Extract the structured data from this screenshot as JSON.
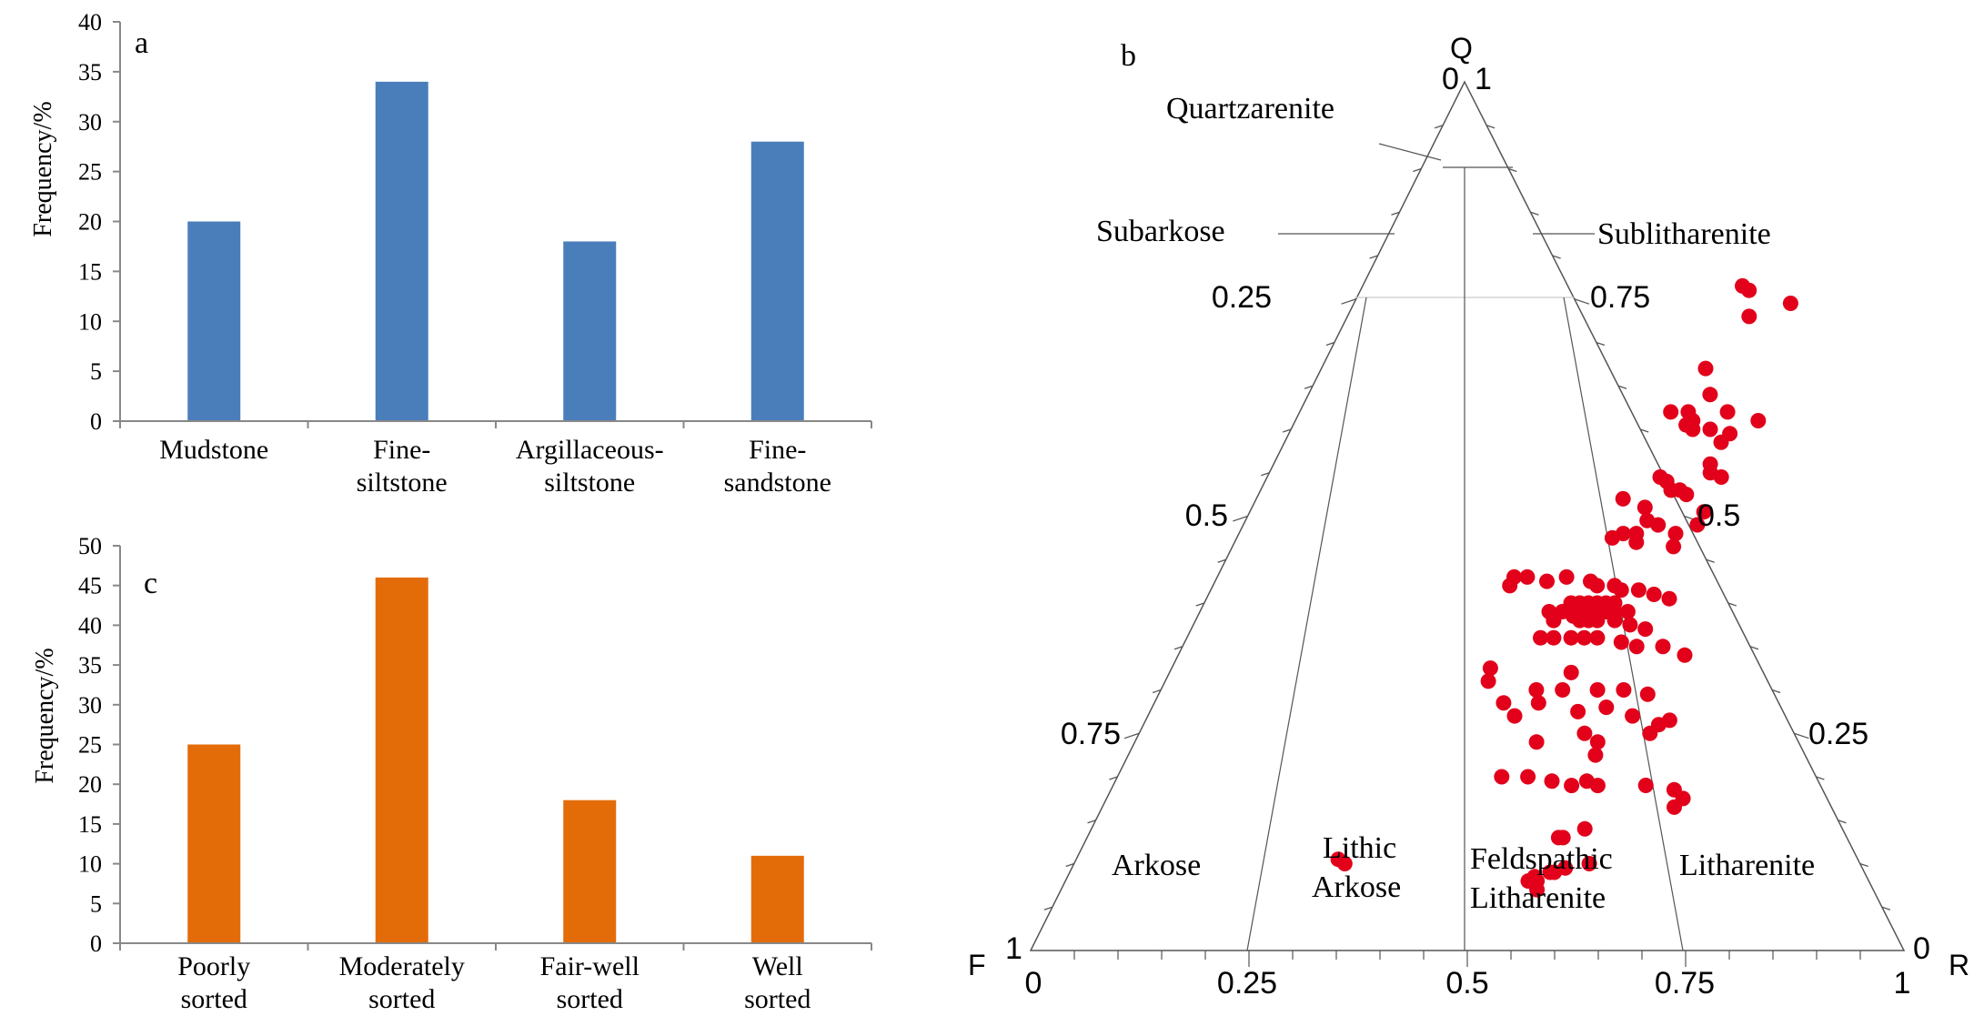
{
  "chart_data": [
    {
      "type": "bar",
      "panel": "a",
      "title": "",
      "xlabel": "",
      "ylabel": "Frequency/%",
      "ylim": [
        0,
        40
      ],
      "ytick_step": 5,
      "categories": [
        [
          "Mudstone"
        ],
        [
          "Fine-",
          "siltstone"
        ],
        [
          "Argillaceous-",
          "siltstone"
        ],
        [
          "Fine-",
          "sandstone"
        ]
      ],
      "values": [
        20,
        34,
        18,
        28
      ],
      "color": "#4a7ebb",
      "grid": false
    },
    {
      "type": "bar",
      "panel": "c",
      "title": "",
      "xlabel": "",
      "ylabel": "Frequency/%",
      "ylim": [
        0,
        50
      ],
      "ytick_step": 5,
      "categories": [
        [
          "Poorly",
          "sorted"
        ],
        [
          "Moderately",
          "sorted"
        ],
        [
          "Fair-well",
          "sorted"
        ],
        [
          "Well",
          "sorted"
        ]
      ],
      "values": [
        25,
        46,
        18,
        11
      ],
      "color": "#e36c09",
      "grid": false
    },
    {
      "type": "scatter",
      "subtype": "ternary",
      "panel": "b",
      "vertices": {
        "top": "Q",
        "left": "F",
        "right": "R"
      },
      "corner_values": {
        "top_left": "0",
        "top_right": "1",
        "left": "1",
        "right": "0"
      },
      "left_axis_ticks": [
        "0.25",
        "0.5",
        "0.75"
      ],
      "right_axis_ticks": [
        "0.75",
        "0.5",
        "0.25"
      ],
      "bottom_axis_ticks": [
        "0",
        "0.25",
        "0.5",
        "0.75",
        "1"
      ],
      "boundaries": {
        "Q": [
          0.95,
          0.75
        ],
        "F_fraction": [
          0.25,
          0.5,
          0.75
        ]
      },
      "fields": [
        [
          "Quartzarenite"
        ],
        [
          "Subarkose"
        ],
        [
          "Sublitharenite"
        ],
        [
          "Arkose"
        ],
        [
          "Lithic",
          "Arkose"
        ],
        [
          "Feldspathic",
          "Litharenite"
        ],
        [
          "Litharenite"
        ]
      ],
      "marker_color": "#e2001a",
      "points": [
        {
          "q": 0.765,
          "r": 0.435
        },
        {
          "q": 0.76,
          "r": 0.445
        },
        {
          "q": 0.745,
          "r": 0.5
        },
        {
          "q": 0.73,
          "r": 0.46
        },
        {
          "q": 0.67,
          "r": 0.44
        },
        {
          "q": 0.64,
          "r": 0.46
        },
        {
          "q": 0.62,
          "r": 0.425
        },
        {
          "q": 0.62,
          "r": 0.445
        },
        {
          "q": 0.62,
          "r": 0.49
        },
        {
          "q": 0.61,
          "r": 0.455
        },
        {
          "q": 0.605,
          "r": 0.45
        },
        {
          "q": 0.61,
          "r": 0.53
        },
        {
          "q": 0.6,
          "r": 0.46
        },
        {
          "q": 0.6,
          "r": 0.48
        },
        {
          "q": 0.595,
          "r": 0.505
        },
        {
          "q": 0.585,
          "r": 0.5
        },
        {
          "q": 0.56,
          "r": 0.5
        },
        {
          "q": 0.55,
          "r": 0.505
        },
        {
          "q": 0.545,
          "r": 0.45
        },
        {
          "q": 0.54,
          "r": 0.46
        },
        {
          "q": 0.545,
          "r": 0.52
        },
        {
          "q": 0.53,
          "r": 0.47
        },
        {
          "q": 0.53,
          "r": 0.48
        },
        {
          "q": 0.525,
          "r": 0.49
        },
        {
          "q": 0.52,
          "r": 0.42
        },
        {
          "q": 0.51,
          "r": 0.45
        },
        {
          "q": 0.505,
          "r": 0.52
        },
        {
          "q": 0.495,
          "r": 0.46
        },
        {
          "q": 0.49,
          "r": 0.475
        },
        {
          "q": 0.49,
          "r": 0.52
        },
        {
          "q": 0.48,
          "r": 0.44
        },
        {
          "q": 0.48,
          "r": 0.455
        },
        {
          "q": 0.48,
          "r": 0.5
        },
        {
          "q": 0.475,
          "r": 0.43
        },
        {
          "q": 0.47,
          "r": 0.46
        },
        {
          "q": 0.465,
          "r": 0.505
        },
        {
          "q": 0.43,
          "r": 0.34
        },
        {
          "q": 0.43,
          "r": 0.355
        },
        {
          "q": 0.425,
          "r": 0.38
        },
        {
          "q": 0.42,
          "r": 0.34
        },
        {
          "q": 0.43,
          "r": 0.4
        },
        {
          "q": 0.425,
          "r": 0.43
        },
        {
          "q": 0.42,
          "r": 0.44
        },
        {
          "q": 0.42,
          "r": 0.46
        },
        {
          "q": 0.415,
          "r": 0.47
        },
        {
          "q": 0.415,
          "r": 0.49
        },
        {
          "q": 0.41,
          "r": 0.51
        },
        {
          "q": 0.405,
          "r": 0.53
        },
        {
          "q": 0.4,
          "r": 0.42
        },
        {
          "q": 0.4,
          "r": 0.43
        },
        {
          "q": 0.4,
          "r": 0.44
        },
        {
          "q": 0.4,
          "r": 0.45
        },
        {
          "q": 0.4,
          "r": 0.46
        },
        {
          "q": 0.4,
          "r": 0.47
        },
        {
          "q": 0.39,
          "r": 0.4
        },
        {
          "q": 0.39,
          "r": 0.415
        },
        {
          "q": 0.39,
          "r": 0.425
        },
        {
          "q": 0.39,
          "r": 0.435
        },
        {
          "q": 0.39,
          "r": 0.445
        },
        {
          "q": 0.39,
          "r": 0.455
        },
        {
          "q": 0.39,
          "r": 0.465
        },
        {
          "q": 0.39,
          "r": 0.475
        },
        {
          "q": 0.39,
          "r": 0.49
        },
        {
          "q": 0.385,
          "r": 0.43
        },
        {
          "q": 0.38,
          "r": 0.41
        },
        {
          "q": 0.38,
          "r": 0.44
        },
        {
          "q": 0.38,
          "r": 0.45
        },
        {
          "q": 0.38,
          "r": 0.46
        },
        {
          "q": 0.38,
          "r": 0.48
        },
        {
          "q": 0.375,
          "r": 0.5
        },
        {
          "q": 0.37,
          "r": 0.52
        },
        {
          "q": 0.36,
          "r": 0.405
        },
        {
          "q": 0.36,
          "r": 0.42
        },
        {
          "q": 0.36,
          "r": 0.44
        },
        {
          "q": 0.36,
          "r": 0.455
        },
        {
          "q": 0.36,
          "r": 0.47
        },
        {
          "q": 0.355,
          "r": 0.5
        },
        {
          "q": 0.35,
          "r": 0.52
        },
        {
          "q": 0.35,
          "r": 0.55
        },
        {
          "q": 0.34,
          "r": 0.58
        },
        {
          "q": 0.325,
          "r": 0.365
        },
        {
          "q": 0.32,
          "r": 0.46
        },
        {
          "q": 0.31,
          "r": 0.37
        },
        {
          "q": 0.3,
          "r": 0.43
        },
        {
          "q": 0.3,
          "r": 0.46
        },
        {
          "q": 0.3,
          "r": 0.5
        },
        {
          "q": 0.3,
          "r": 0.53
        },
        {
          "q": 0.295,
          "r": 0.56
        },
        {
          "q": 0.285,
          "r": 0.4
        },
        {
          "q": 0.285,
          "r": 0.44
        },
        {
          "q": 0.28,
          "r": 0.52
        },
        {
          "q": 0.275,
          "r": 0.49
        },
        {
          "q": 0.27,
          "r": 0.42
        },
        {
          "q": 0.27,
          "r": 0.555
        },
        {
          "q": 0.265,
          "r": 0.6
        },
        {
          "q": 0.26,
          "r": 0.59
        },
        {
          "q": 0.25,
          "r": 0.585
        },
        {
          "q": 0.25,
          "r": 0.51
        },
        {
          "q": 0.24,
          "r": 0.46
        },
        {
          "q": 0.24,
          "r": 0.53
        },
        {
          "q": 0.225,
          "r": 0.535
        },
        {
          "q": 0.2,
          "r": 0.44
        },
        {
          "q": 0.2,
          "r": 0.47
        },
        {
          "q": 0.195,
          "r": 0.5
        },
        {
          "q": 0.195,
          "r": 0.54
        },
        {
          "q": 0.19,
          "r": 0.525
        },
        {
          "q": 0.19,
          "r": 0.555
        },
        {
          "q": 0.19,
          "r": 0.61
        },
        {
          "q": 0.185,
          "r": 0.645
        },
        {
          "q": 0.175,
          "r": 0.66
        },
        {
          "q": 0.165,
          "r": 0.655
        },
        {
          "q": 0.14,
          "r": 0.565
        },
        {
          "q": 0.13,
          "r": 0.545
        },
        {
          "q": 0.13,
          "r": 0.54
        },
        {
          "q": 0.1,
          "r": 0.59
        },
        {
          "q": 0.095,
          "r": 0.565
        },
        {
          "q": 0.09,
          "r": 0.55
        },
        {
          "q": 0.09,
          "r": 0.555
        },
        {
          "q": 0.08,
          "r": 0.54
        },
        {
          "q": 0.08,
          "r": 0.53
        },
        {
          "q": 0.07,
          "r": 0.545
        },
        {
          "q": 0.1,
          "r": 0.31
        },
        {
          "q": 0.105,
          "r": 0.3
        },
        {
          "q": 0.085,
          "r": 0.535
        }
      ]
    }
  ]
}
